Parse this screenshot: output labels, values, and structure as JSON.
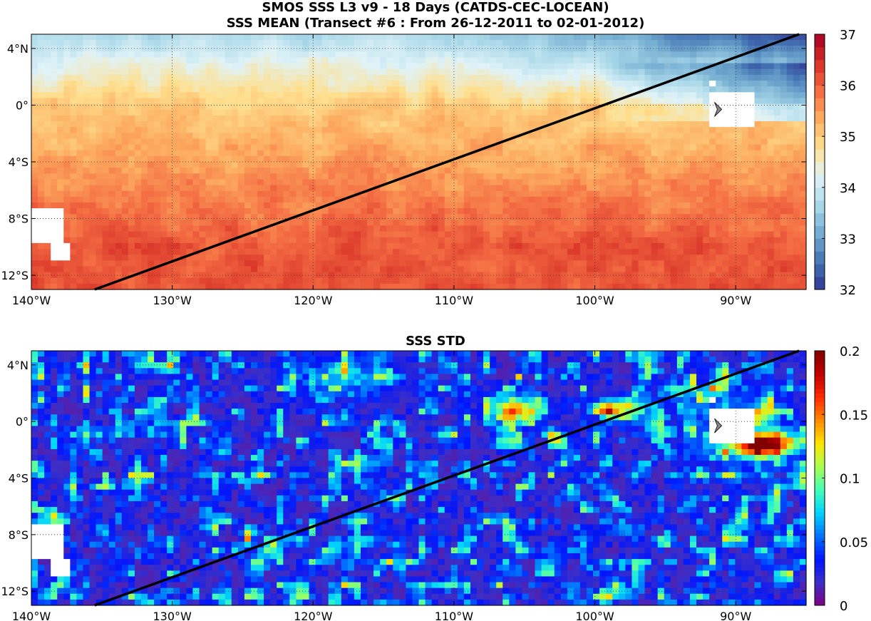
{
  "header": {
    "line1": "SMOS SSS L3 v9 - 18 Days (CATDS-CEC-LOCEAN)",
    "line2": "SSS MEAN (Transect #6 : From 26-12-2011 to 02-01-2012)"
  },
  "chart_data": [
    {
      "type": "heatmap",
      "title": "SSS MEAN (Transect #6 : From 26-12-2011 to 02-01-2012)",
      "xlim": [
        -140,
        -85
      ],
      "ylim": [
        -13,
        5
      ],
      "x_ticks": [
        -140,
        -130,
        -120,
        -110,
        -100,
        -90
      ],
      "x_tick_labels": [
        "140°W",
        "130°W",
        "120°W",
        "110°W",
        "100°W",
        "90°W"
      ],
      "y_ticks": [
        4,
        0,
        -4,
        -8,
        -12
      ],
      "y_tick_labels": [
        "4°N",
        "0°",
        "4°S",
        "8°S",
        "12°S"
      ],
      "colorbar": {
        "range": [
          32,
          37
        ],
        "ticks": [
          32,
          33,
          34,
          35,
          36,
          37
        ],
        "tick_labels": [
          "32",
          "33",
          "34",
          "35",
          "36",
          "37"
        ],
        "colormap": "RdYlBu_r",
        "colors": [
          "#313695",
          "#4575b4",
          "#74add1",
          "#abd9e9",
          "#e0f3f8",
          "#fee090",
          "#fdae61",
          "#f46d43",
          "#d73027",
          "#a50026"
        ]
      },
      "field_description": "Low salinity (32-33.5) in north-east near 4°N 90°W; mid values (34.5-35.5) across equator; high values (35.5-36.2) south of 4°S",
      "transect": {
        "from": [
          -135.5,
          -13
        ],
        "to": [
          -85.5,
          5
        ]
      },
      "grid": true
    },
    {
      "type": "heatmap",
      "title": "SSS STD",
      "xlim": [
        -140,
        -85
      ],
      "ylim": [
        -13,
        5
      ],
      "x_ticks": [
        -140,
        -130,
        -120,
        -110,
        -100,
        -90
      ],
      "x_tick_labels": [
        "140°W",
        "130°W",
        "120°W",
        "110°W",
        "100°W",
        "90°W"
      ],
      "y_ticks": [
        4,
        0,
        -4,
        -8,
        -12
      ],
      "y_tick_labels": [
        "4°N",
        "0°",
        "4°S",
        "8°S",
        "12°S"
      ],
      "colorbar": {
        "range": [
          0,
          0.2
        ],
        "ticks": [
          0,
          0.05,
          0.1,
          0.15,
          0.2
        ],
        "tick_labels": [
          "0",
          "0.05",
          "0.1",
          "0.15",
          "0.2"
        ],
        "colormap": "jet",
        "colors": [
          "#7f0080",
          "#3b2fc8",
          "#0014ff",
          "#0072ff",
          "#00d4ff",
          "#45ffb6",
          "#aaff50",
          "#ffe500",
          "#ff8a00",
          "#ff2a00",
          "#c00000",
          "#800000"
        ]
      },
      "field_description": "Mostly low STD (0-0.05); hotspots up to 0.2 near 1°S 88°W and 1°N 106°W and 98°W",
      "transect": {
        "from": [
          -135.5,
          -13
        ],
        "to": [
          -85.5,
          5
        ]
      },
      "grid": true
    }
  ]
}
